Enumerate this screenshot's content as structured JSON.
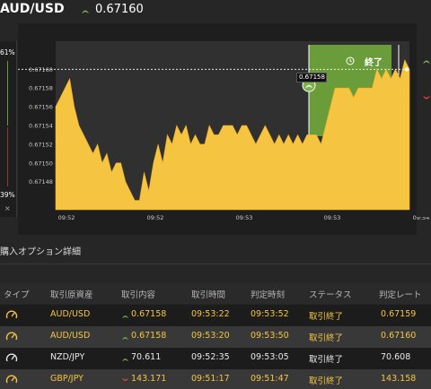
{
  "header": {
    "pair": "AUD/USD",
    "price": "0.67160",
    "arrow_icon": "up-arrow-icon"
  },
  "left_rail": {
    "top_percent": "61%",
    "bottom_percent": "39%",
    "close_label": "×"
  },
  "chart_data": {
    "type": "area",
    "series": [
      {
        "values": [
          0.67156,
          0.67157,
          0.67158,
          0.67159,
          0.67156,
          0.67154,
          0.67153,
          0.67152,
          0.67151,
          0.67152,
          0.6715,
          0.67151,
          0.67149,
          0.6715,
          0.6715,
          0.67148,
          0.67147,
          0.67146,
          0.67146,
          0.67149,
          0.67147,
          0.6715,
          0.67152,
          0.6715,
          0.67153,
          0.67152,
          0.67154,
          0.67153,
          0.67154,
          0.67152,
          0.67153,
          0.67152,
          0.67152,
          0.67154,
          0.67153,
          0.67153,
          0.67154,
          0.67154,
          0.67154,
          0.67153,
          0.67154,
          0.67154,
          0.67153,
          0.67152,
          0.67153,
          0.67154,
          0.67153,
          0.67152,
          0.67153,
          0.67152,
          0.67153,
          0.67152,
          0.67153,
          0.67152,
          0.67153,
          0.67153,
          0.67153,
          0.67152,
          0.67154,
          0.67156,
          0.67158,
          0.67158,
          0.67158,
          0.67158,
          0.67157,
          0.67158,
          0.67158,
          0.67158,
          0.67158,
          0.6716,
          0.67159,
          0.6716,
          0.67159,
          0.6716,
          0.67159,
          0.67161,
          0.6716
        ]
      }
    ],
    "ylim": [
      0.67145,
      0.67163
    ],
    "y_ticks": [
      "0.67160",
      "0.67158",
      "0.67156",
      "0.67154",
      "0.67152",
      "0.67150",
      "0.67148"
    ],
    "x_ticks": [
      "09:52",
      "09:52",
      "09:53",
      "09:53",
      "09:54"
    ],
    "current_price_line": 0.6716,
    "marker_label": "0.67158",
    "marker_value": 0.67158,
    "end_button_label": "終了",
    "clock_icon": "clock-icon",
    "fill_color": "#f5c542",
    "zone_color": "#6a9c3a",
    "grid": false
  },
  "details": {
    "title": "購入オプション詳細"
  },
  "table": {
    "columns": [
      "タイプ",
      "取引原資産",
      "取引内容",
      "取引時間",
      "判定時刻",
      "ステータス",
      "判定レート"
    ],
    "rows": [
      {
        "type_icon": "gauge-icon",
        "asset": "AUD/USD",
        "direction": "up",
        "price": "0.67158",
        "trade_time": "09:53:22",
        "judge_time": "09:53:52",
        "status": "取引終了",
        "rate": "0.67159",
        "highlight": true
      },
      {
        "type_icon": "gauge-icon",
        "asset": "AUD/USD",
        "direction": "up",
        "price": "0.67158",
        "trade_time": "09:53:20",
        "judge_time": "09:53:50",
        "status": "取引終了",
        "rate": "0.67160",
        "highlight": true
      },
      {
        "type_icon": "gauge-icon",
        "asset": "NZD/JPY",
        "direction": "up",
        "price": "70.611",
        "trade_time": "09:52:35",
        "judge_time": "09:53:05",
        "status": "取引終了",
        "rate": "70.608",
        "highlight": false
      },
      {
        "type_icon": "gauge-icon",
        "asset": "GBP/JPY",
        "direction": "down",
        "price": "143.171",
        "trade_time": "09:51:17",
        "judge_time": "09:51:47",
        "status": "取引終了",
        "rate": "143.158",
        "highlight": true
      }
    ]
  },
  "colors": {
    "up": "#7fb24a",
    "down": "#e04a3a",
    "highlight": "#f5c542"
  }
}
